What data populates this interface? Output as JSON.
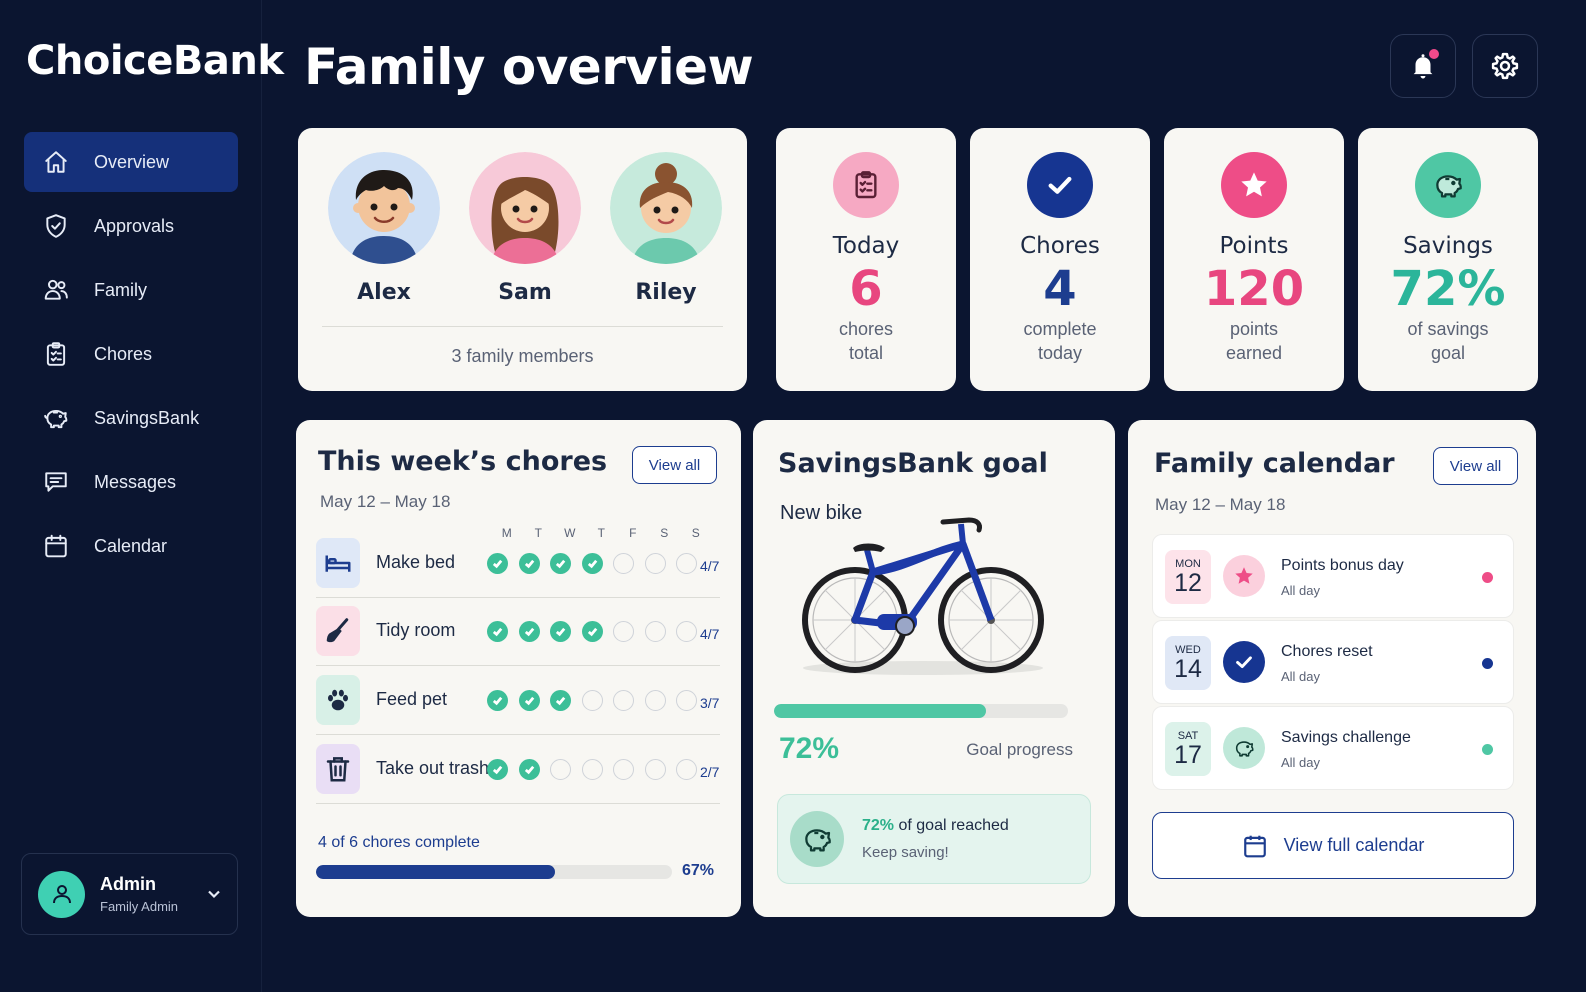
{
  "app": {
    "name": "ChoiceBank"
  },
  "sidebar": {
    "items": [
      {
        "label": "Overview",
        "icon": "home-icon",
        "active": true
      },
      {
        "label": "Approvals",
        "icon": "shield-check-icon"
      },
      {
        "label": "Family",
        "icon": "users-icon"
      },
      {
        "label": "Chores",
        "icon": "clipboard-icon"
      },
      {
        "label": "SavingsBank",
        "icon": "piggy-bank-icon"
      },
      {
        "label": "Messages",
        "icon": "message-icon"
      },
      {
        "label": "Calendar",
        "icon": "calendar-icon"
      }
    ],
    "user": {
      "name": "Admin",
      "role": "Family Admin"
    }
  },
  "header": {
    "title": "Family overview",
    "notification_dot": true
  },
  "members": {
    "list": [
      {
        "name": "Alex",
        "bg": "#cfe0f5"
      },
      {
        "name": "Sam",
        "bg": "#f7c9d8"
      },
      {
        "name": "Riley",
        "bg": "#c6eadc"
      }
    ],
    "count_label": "3 family members"
  },
  "stats": [
    {
      "label": "Today",
      "value": "6",
      "sub1": "chores",
      "sub2": "total",
      "color": "#e8467f",
      "icon_bg": "#f6a9c3",
      "icon": "clipboard-icon"
    },
    {
      "label": "Chores",
      "value": "4",
      "sub1": "complete",
      "sub2": "today",
      "color": "#1d3d8f",
      "icon_bg": "#163591",
      "icon": "check-icon"
    },
    {
      "label": "Points",
      "value": "120",
      "sub1": "points",
      "sub2": "earned",
      "color": "#e8467f",
      "icon_bg": "#ee4d87",
      "icon": "star-icon"
    },
    {
      "label": "Savings",
      "value": "72%",
      "sub1": "of savings",
      "sub2": "goal",
      "color": "#2bb59a",
      "icon_bg": "#4fc7a4",
      "icon": "piggy-bank-icon"
    }
  ],
  "chores": {
    "title": "This week’s chores",
    "range": "May 12 – May 18",
    "view_all": "View all",
    "days": [
      "M",
      "T",
      "W",
      "T",
      "F",
      "S",
      "S"
    ],
    "rows": [
      {
        "name": "Make bed",
        "done": 4,
        "fraction": "4/7",
        "icon": "bed-icon",
        "icon_bg": "#dfe8f7"
      },
      {
        "name": "Tidy room",
        "done": 4,
        "fraction": "4/7",
        "icon": "broom-icon",
        "icon_bg": "#fbdfe7"
      },
      {
        "name": "Feed pet",
        "done": 3,
        "fraction": "3/7",
        "icon": "paw-icon",
        "icon_bg": "#d8f0e7"
      },
      {
        "name": "Take out trash",
        "done": 2,
        "fraction": "2/7",
        "icon": "trash-icon",
        "icon_bg": "#e9def5"
      }
    ],
    "summary": "4 of 6 chores complete",
    "progress": 0.67,
    "progress_label": "67%"
  },
  "savings": {
    "title": "SavingsBank goal",
    "goal_name": "New bike",
    "progress": 0.72,
    "percent_label": "72%",
    "progress_caption": "Goal progress",
    "box_percent": "72%",
    "box_text": "of goal reached",
    "box_sub": "Keep saving!"
  },
  "calendar": {
    "title": "Family calendar",
    "range": "May 12 – May 18",
    "view_all": "View all",
    "events": [
      {
        "dow": "MON",
        "day": "12",
        "title": "Points bonus day",
        "sub": "All day",
        "color": "#ee4d87",
        "date_bg": "#fde3ea",
        "icon_bg": "#fbd0dd",
        "icon": "star-icon"
      },
      {
        "dow": "WED",
        "day": "14",
        "title": "Chores reset",
        "sub": "All day",
        "color": "#163591",
        "date_bg": "#e0e8f6",
        "icon_bg": "#163591",
        "icon": "check-icon"
      },
      {
        "dow": "SAT",
        "day": "17",
        "title": "Savings challenge",
        "sub": "All day",
        "color": "#4fc7a4",
        "date_bg": "#dcf2ea",
        "icon_bg": "#bfe8d9",
        "icon": "piggy-bank-icon"
      }
    ],
    "full_button": "View full calendar"
  }
}
